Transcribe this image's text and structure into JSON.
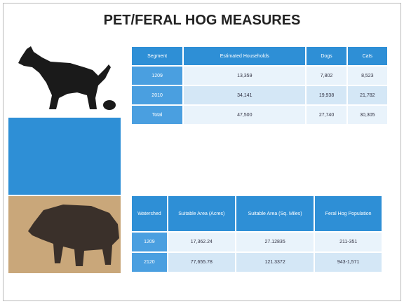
{
  "title": "PET/FERAL HOG MEASURES",
  "tables": [
    {
      "headers": [
        "Segment",
        "Estimated Households",
        "Dogs",
        "Cats"
      ],
      "rows": [
        [
          "1209",
          "13,359",
          "7,802",
          "8,523"
        ],
        [
          "2010",
          "34,141",
          "19,938",
          "21,782"
        ],
        [
          "Total",
          "47,500",
          "27,740",
          "30,305"
        ]
      ]
    },
    {
      "headers": [
        "Watershed",
        "Suitable Area (Acres)",
        "Suitable Area (Sq. Miles)",
        "Feral Hog Population"
      ],
      "rows": [
        [
          "1209",
          "17,362.24",
          "27.12835",
          "211-351"
        ],
        [
          "2120",
          "77,655.78",
          "121.3372",
          "943-1,571"
        ]
      ]
    }
  ]
}
